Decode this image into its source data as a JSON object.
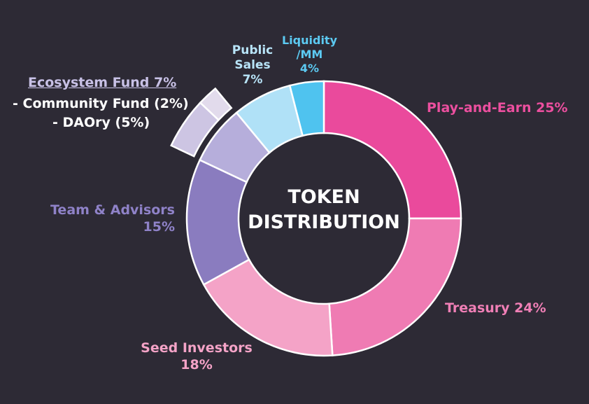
{
  "chart_data": {
    "type": "donut",
    "title": "TOKEN DISTRIBUTION",
    "categories": [
      "Play-and-Earn",
      "Treasury",
      "Seed Investors",
      "Team & Advisors",
      "Ecosystem Fund",
      "Public Sales",
      "Liquidity /MM"
    ],
    "values": [
      25,
      24,
      18,
      15,
      7,
      7,
      4
    ],
    "value_labels": [
      "25%",
      "24%",
      "18%",
      "15%",
      "7%",
      "7%",
      "4%"
    ],
    "colors": [
      "#ea4a9c",
      "#ef7bb3",
      "#f4a3c7",
      "#8a7cbf",
      "#b6aedb",
      "#b0e1f7",
      "#4fc3ef"
    ],
    "label_colors": [
      "#ec4f9f",
      "#f07fb6",
      "#f4a3c7",
      "#8f82c8",
      "#c8c1e6",
      "#b8e4f8",
      "#5ccaf2"
    ],
    "ecosystem_breakdown": {
      "categories": [
        "- Community Fund",
        "- DAOry"
      ],
      "values": [
        2,
        5
      ],
      "value_labels": [
        "(2%)",
        "(5%)"
      ],
      "colors": [
        "#e2dbec",
        "#cdc5e3"
      ]
    }
  }
}
